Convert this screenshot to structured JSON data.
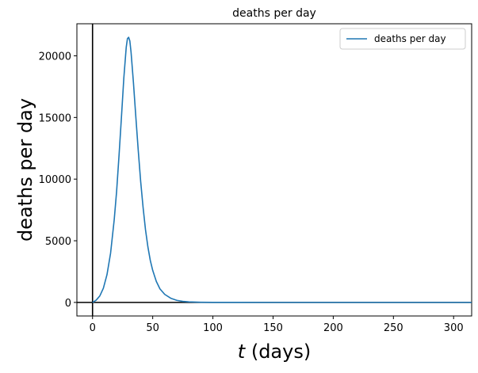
{
  "chart_data": {
    "type": "line",
    "title": "deaths per day",
    "xlabel_var": "t",
    "xlabel_rest": " (days)",
    "ylabel": "deaths per day",
    "xlim": [
      -13,
      315
    ],
    "ylim": [
      -1100,
      22600
    ],
    "xticks": [
      0,
      50,
      100,
      150,
      200,
      250,
      300
    ],
    "yticks": [
      0,
      5000,
      10000,
      15000,
      20000
    ],
    "grid": false,
    "legend_position": "top-right",
    "series": [
      {
        "name": "deaths per day",
        "color": "#1f77b4",
        "x": [
          0,
          3,
          6,
          9,
          12,
          15,
          18,
          20,
          22,
          24,
          26,
          28,
          29,
          30,
          31,
          32,
          34,
          36,
          38,
          40,
          42,
          44,
          46,
          48,
          50,
          53,
          56,
          60,
          65,
          70,
          75,
          80,
          90,
          100,
          120,
          150,
          200,
          250,
          300,
          315
        ],
        "y": [
          0,
          180,
          520,
          1150,
          2250,
          4000,
          6700,
          9000,
          11900,
          15000,
          18200,
          20700,
          21400,
          21500,
          21200,
          20300,
          17800,
          15000,
          12300,
          9800,
          7700,
          5900,
          4500,
          3400,
          2600,
          1700,
          1100,
          650,
          340,
          170,
          85,
          45,
          12,
          4,
          1,
          0,
          0,
          0,
          0,
          0
        ]
      }
    ],
    "reference_lines": {
      "x": 0,
      "y": 0,
      "color": "#000000"
    }
  }
}
